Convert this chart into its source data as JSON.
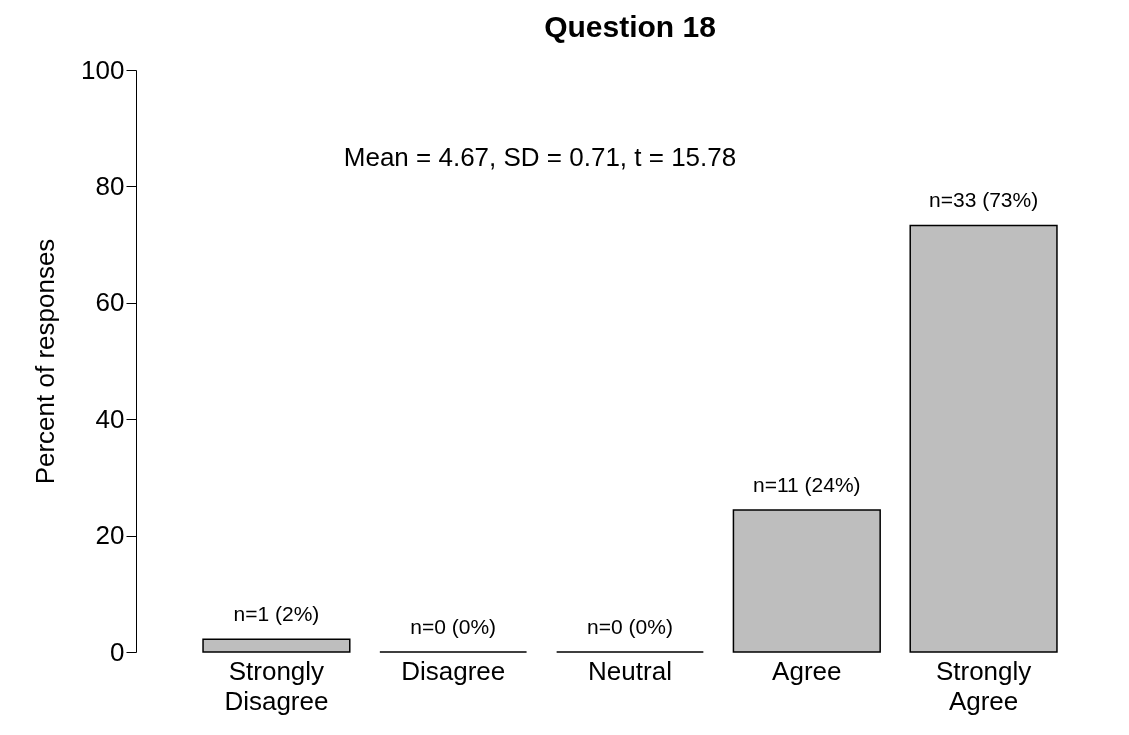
{
  "chart_data": {
    "type": "bar",
    "title": "Question 18",
    "ylabel": "Percent of responses",
    "categories": [
      "Strongly Disagree",
      "Disagree",
      "Neutral",
      "Agree",
      "Strongly Agree"
    ],
    "values": [
      2.2,
      0,
      0,
      24.4,
      73.3
    ],
    "value_labels": [
      "n=1 (2%)",
      "n=0 (0%)",
      "n=0 (0%)",
      "n=11 (24%)",
      "n=33 (73%)"
    ],
    "color": "#bebebe",
    "ylim": [
      0,
      100
    ],
    "yticks": [
      0,
      20,
      40,
      60,
      80,
      100
    ],
    "annotations": [
      "Mean = 4.67, SD = 0.71, t = 15.78"
    ],
    "grid": false
  }
}
